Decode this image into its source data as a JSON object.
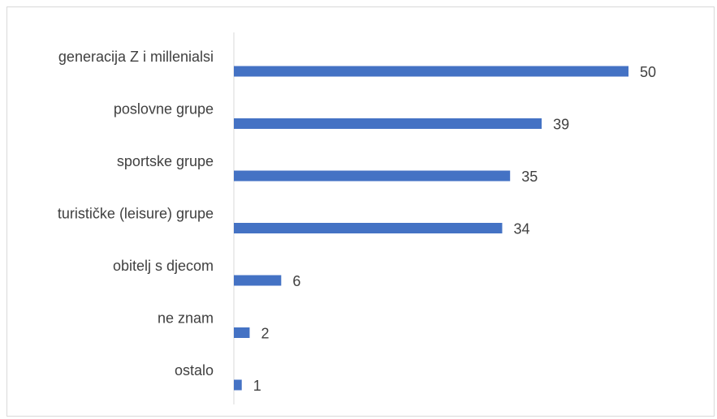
{
  "chart_data": {
    "type": "bar",
    "orientation": "horizontal",
    "categories": [
      "generacija Z i millenialsi",
      "poslovne grupe",
      "sportske grupe",
      "turističke (leisure) grupe",
      "obitelj s djecom",
      "ne znam",
      "ostalo"
    ],
    "values": [
      50,
      39,
      35,
      34,
      6,
      2,
      1
    ],
    "data_labels": [
      "50",
      "39",
      "35",
      "34",
      "6",
      "2",
      "1"
    ],
    "bar_color": "#4472c4",
    "xlim": [
      0,
      50
    ],
    "grid": false,
    "legend": "none"
  }
}
